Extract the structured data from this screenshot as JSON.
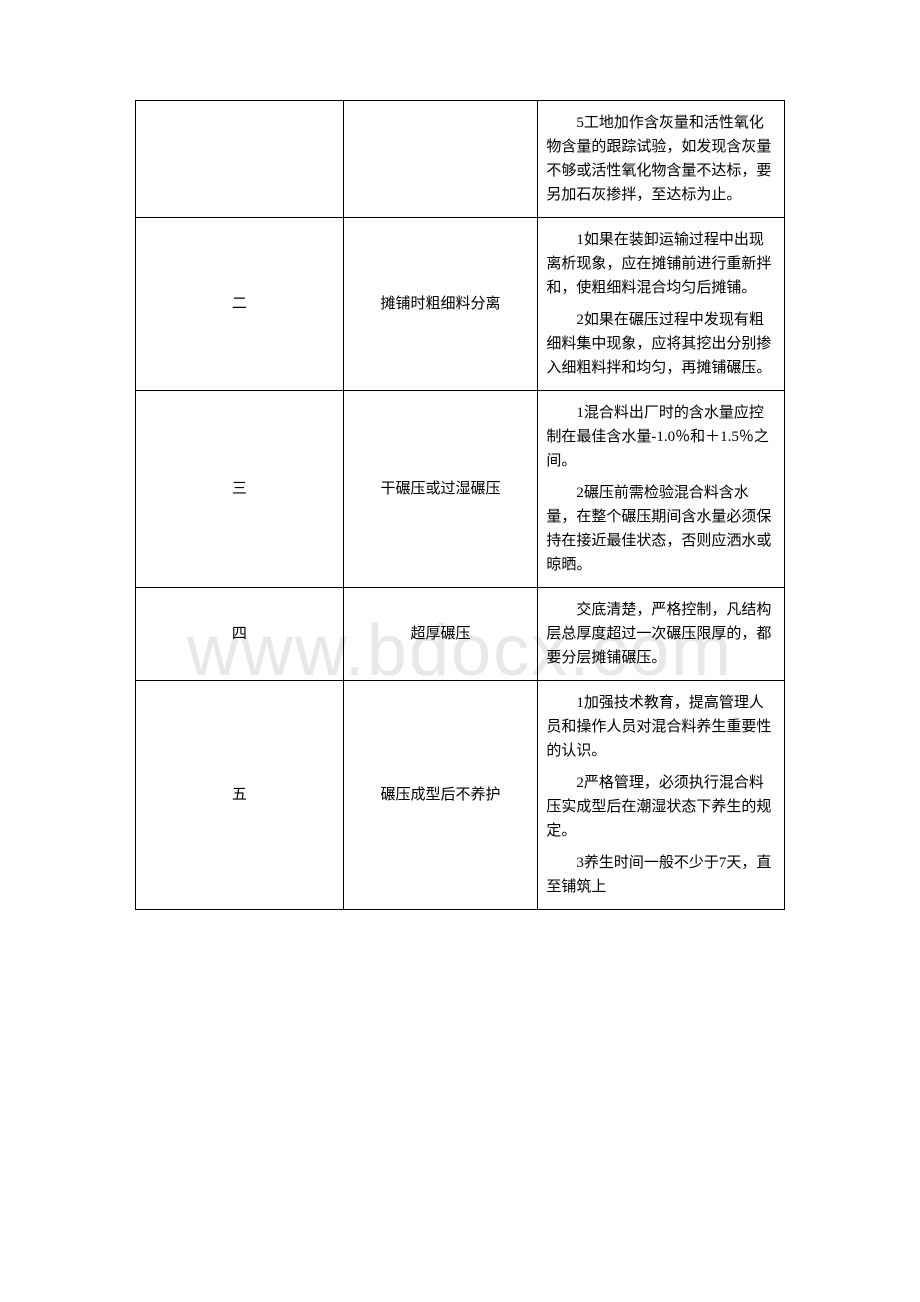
{
  "watermark": "www.bdocx.com",
  "table": {
    "rows": [
      {
        "col1": "",
        "col2": "",
        "col3_paras": [
          "5工地加作含灰量和活性氧化物含量的跟踪试验，如发现含灰量不够或活性氧化物含量不达标，要另加石灰掺拌，至达标为止。"
        ]
      },
      {
        "col1": "二",
        "col2": "摊铺时粗细料分离",
        "col3_paras": [
          "1如果在装卸运输过程中出现离析现象，应在摊铺前进行重新拌和，使粗细料混合均匀后摊铺。",
          "2如果在碾压过程中发现有粗细料集中现象，应将其挖出分别掺入细粗料拌和均匀，再摊铺碾压。"
        ]
      },
      {
        "col1": "三",
        "col2": "干碾压或过湿碾压",
        "col3_paras": [
          "1混合料出厂时的含水量应控制在最佳含水量-1.0％和＋1.5％之间。",
          "2碾压前需检验混合料含水量，在整个碾压期间含水量必须保持在接近最佳状态，否则应洒水或晾晒。"
        ]
      },
      {
        "col1": "四",
        "col2": "超厚碾压",
        "col3_paras": [
          "交底清楚，严格控制，凡结构层总厚度超过一次碾压限厚的，都要分层摊铺碾压。"
        ]
      },
      {
        "col1": "五",
        "col2": "碾压成型后不养护",
        "col3_paras": [
          "1加强技术教育，提高管理人员和操作人员对混合料养生重要性的认识。",
          "2严格管理，必须执行混合料压实成型后在潮湿状态下养生的规定。",
          "3养生时间一般不少于7天，直至铺筑上"
        ]
      }
    ]
  }
}
